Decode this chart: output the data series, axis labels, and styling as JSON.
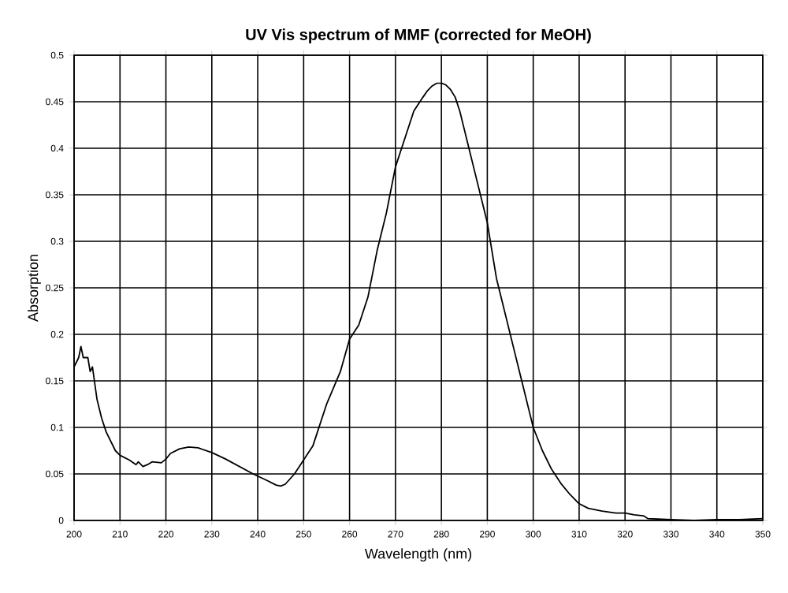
{
  "chart_data": {
    "type": "line",
    "title": "UV Vis spectrum of MMF (corrected for MeOH)",
    "xlabel": "Wavelength (nm)",
    "ylabel": "Absorption",
    "x": [
      200,
      201,
      201.5,
      202,
      203,
      203.5,
      204,
      205,
      206,
      207,
      208,
      209,
      210,
      212,
      213.5,
      214,
      215,
      216,
      217,
      219,
      220,
      221,
      223,
      225,
      227,
      230,
      233,
      236,
      239,
      242,
      244,
      245,
      246,
      248,
      250,
      252,
      255,
      258,
      260,
      262,
      264,
      266,
      268,
      270,
      272,
      274,
      276,
      277,
      278,
      279,
      280,
      281,
      282,
      283,
      284,
      285,
      286,
      287,
      288,
      289,
      290,
      291,
      292,
      293,
      294,
      295,
      296,
      297,
      298,
      299,
      300,
      302,
      304,
      306,
      308,
      310,
      312,
      315,
      318,
      320,
      322,
      324,
      325,
      330,
      335,
      340,
      345,
      350
    ],
    "series": [
      {
        "color": "#000000",
        "values": [
          0.165,
          0.175,
          0.187,
          0.175,
          0.175,
          0.16,
          0.165,
          0.13,
          0.11,
          0.095,
          0.085,
          0.075,
          0.07,
          0.065,
          0.06,
          0.063,
          0.058,
          0.06,
          0.063,
          0.062,
          0.066,
          0.072,
          0.077,
          0.079,
          0.078,
          0.073,
          0.066,
          0.058,
          0.05,
          0.043,
          0.038,
          0.037,
          0.039,
          0.05,
          0.065,
          0.08,
          0.125,
          0.16,
          0.195,
          0.21,
          0.24,
          0.29,
          0.33,
          0.38,
          0.41,
          0.44,
          0.455,
          0.462,
          0.467,
          0.47,
          0.47,
          0.468,
          0.463,
          0.455,
          0.44,
          0.42,
          0.4,
          0.38,
          0.36,
          0.34,
          0.32,
          0.29,
          0.26,
          0.24,
          0.22,
          0.2,
          0.18,
          0.16,
          0.14,
          0.12,
          0.1,
          0.075,
          0.055,
          0.04,
          0.028,
          0.018,
          0.013,
          0.01,
          0.008,
          0.008,
          0.006,
          0.005,
          0.002,
          0.001,
          0.0,
          0.001,
          0.001,
          0.002
        ]
      }
    ],
    "xlim": [
      200,
      350
    ],
    "ylim": [
      0,
      0.5
    ],
    "xticks": [
      200,
      210,
      220,
      230,
      240,
      250,
      260,
      270,
      280,
      290,
      300,
      310,
      320,
      330,
      340,
      350
    ],
    "yticks": [
      0,
      0.05,
      0.1,
      0.15,
      0.2,
      0.25,
      0.3,
      0.35,
      0.4,
      0.45,
      0.5
    ],
    "grid": true,
    "marker": "none",
    "line_style": "solid"
  }
}
